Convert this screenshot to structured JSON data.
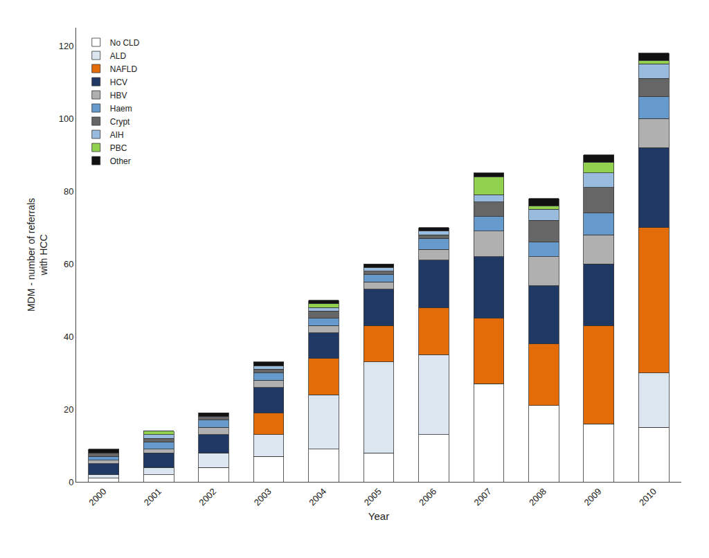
{
  "chart_data": {
    "type": "bar",
    "stacked": true,
    "xlabel": "Year",
    "ylabel": "MDM - number of referrals\nwith HCC",
    "categories": [
      "2000",
      "2001",
      "2002",
      "2003",
      "2004",
      "2005",
      "2006",
      "2007",
      "2008",
      "2009",
      "2010"
    ],
    "series": [
      {
        "name": "No CLD",
        "color": "#ffffff",
        "values": [
          1,
          2,
          4,
          7,
          9,
          8,
          13,
          27,
          21,
          16,
          15
        ]
      },
      {
        "name": "ALD",
        "color": "#dce6f1",
        "values": [
          1,
          2,
          4,
          6,
          15,
          25,
          22,
          0,
          0,
          0,
          15
        ]
      },
      {
        "name": "NAFLD",
        "color": "#e36c09",
        "values": [
          0,
          0,
          0,
          6,
          10,
          10,
          13,
          18,
          17,
          27,
          40
        ]
      },
      {
        "name": "HCV",
        "color": "#1f3864",
        "values": [
          3,
          4,
          5,
          7,
          7,
          10,
          13,
          17,
          16,
          17,
          22
        ]
      },
      {
        "name": "HBV",
        "color": "#b0b0b0",
        "values": [
          1,
          1,
          2,
          2,
          2,
          2,
          3,
          7,
          8,
          8,
          8
        ]
      },
      {
        "name": "Haem",
        "color": "#6699cc",
        "values": [
          1,
          2,
          2,
          2,
          2,
          2,
          3,
          4,
          4,
          6,
          6
        ]
      },
      {
        "name": "Crypt",
        "color": "#666666",
        "values": [
          1,
          1,
          1,
          1,
          2,
          1,
          1,
          4,
          6,
          7,
          5
        ]
      },
      {
        "name": "AIH",
        "color": "#99bbdd",
        "values": [
          0,
          1,
          0,
          1,
          1,
          1,
          1,
          2,
          3,
          4,
          4
        ]
      },
      {
        "name": "PBC",
        "color": "#92d050",
        "values": [
          0,
          1,
          0,
          0,
          1,
          0,
          0,
          5,
          1,
          3,
          1
        ]
      },
      {
        "name": "Other",
        "color": "#111111",
        "values": [
          1,
          0,
          1,
          1,
          1,
          1,
          1,
          1,
          2,
          2,
          2
        ]
      }
    ],
    "ylim": [
      0,
      125
    ],
    "yticks": [
      0,
      20,
      40,
      60,
      80,
      100,
      120
    ],
    "grid": false,
    "legend": "upper left"
  }
}
